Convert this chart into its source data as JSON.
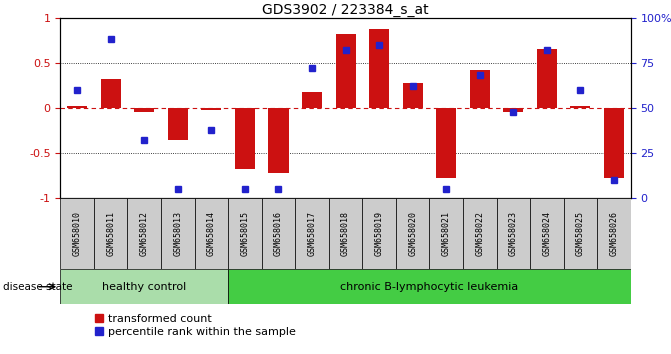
{
  "title": "GDS3902 / 223384_s_at",
  "samples": [
    "GSM658010",
    "GSM658011",
    "GSM658012",
    "GSM658013",
    "GSM658014",
    "GSM658015",
    "GSM658016",
    "GSM658017",
    "GSM658018",
    "GSM658019",
    "GSM658020",
    "GSM658021",
    "GSM658022",
    "GSM658023",
    "GSM658024",
    "GSM658025",
    "GSM658026"
  ],
  "red_bars": [
    0.02,
    0.32,
    -0.05,
    -0.35,
    -0.02,
    -0.68,
    -0.72,
    0.18,
    0.82,
    0.88,
    0.28,
    -0.78,
    0.42,
    -0.05,
    0.65,
    0.02,
    -0.78
  ],
  "blue_dots_pct": [
    60,
    88,
    32,
    5,
    38,
    5,
    5,
    72,
    82,
    85,
    62,
    5,
    68,
    48,
    82,
    60,
    10
  ],
  "bar_color": "#CC1111",
  "dot_color": "#2222CC",
  "healthy_control_count": 5,
  "group1_label": "healthy control",
  "group2_label": "chronic B-lymphocytic leukemia",
  "group1_color": "#AADDAA",
  "group2_color": "#44CC44",
  "disease_state_label": "disease state",
  "legend1": "transformed count",
  "legend2": "percentile rank within the sample",
  "ylim_left": [
    -1,
    1
  ],
  "ylim_right": [
    0,
    100
  ],
  "yticks_left": [
    -1,
    -0.5,
    0,
    0.5,
    1
  ],
  "ytick_labels_left": [
    "-1",
    "-0.5",
    "0",
    "0.5",
    "1"
  ],
  "yticks_right": [
    0,
    25,
    50,
    75,
    100
  ],
  "ytick_labels_right": [
    "0",
    "25",
    "50",
    "75",
    "100%"
  ],
  "label_box_color": "#CCCCCC",
  "bg_color": "#FFFFFF"
}
